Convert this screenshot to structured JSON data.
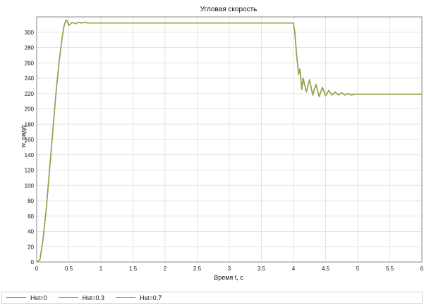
{
  "chart_data": {
    "type": "line",
    "title": "Угловая скорость",
    "xlabel": "Время t, с",
    "ylabel": "w, рад/с",
    "xlim": [
      0,
      6
    ],
    "ylim": [
      0,
      320
    ],
    "xticks": [
      "0",
      "0.5",
      "1",
      "1.5",
      "2",
      "2.5",
      "3",
      "3.5",
      "4",
      "4.5",
      "5",
      "5.5",
      "6"
    ],
    "yticks": [
      "0",
      "20",
      "40",
      "60",
      "80",
      "100",
      "120",
      "140",
      "160",
      "180",
      "200",
      "220",
      "240",
      "260",
      "280",
      "300"
    ],
    "grid": true,
    "legend_position": "bottom",
    "series": [
      {
        "name": "Hst=0",
        "color": "#ff4d4d",
        "x": [
          0,
          0.05,
          0.1,
          0.15,
          0.2,
          0.25,
          0.3,
          0.35,
          0.4,
          0.43,
          0.46,
          0.48,
          0.5,
          0.52,
          0.55,
          0.6,
          0.65,
          0.7,
          0.75,
          0.8,
          1.0,
          2.0,
          3.0,
          3.9,
          4.0,
          4.02,
          4.05,
          4.08,
          4.1,
          4.13,
          4.15,
          4.2,
          4.25,
          4.3,
          4.35,
          4.4,
          4.45,
          4.5,
          4.55,
          4.6,
          4.65,
          4.7,
          4.75,
          4.8,
          4.85,
          4.9,
          4.95,
          5.0,
          5.1,
          5.2,
          5.4,
          5.6,
          6.0
        ],
        "y": [
          0,
          3,
          30,
          70,
          120,
          170,
          220,
          262,
          295,
          310,
          316,
          314,
          309,
          310,
          313,
          311,
          313,
          312,
          313,
          312,
          312,
          312,
          312,
          312,
          312,
          300,
          270,
          245,
          252,
          225,
          240,
          222,
          238,
          218,
          232,
          216,
          228,
          217,
          224,
          218,
          222,
          218,
          221,
          218,
          220,
          218,
          219,
          219,
          219,
          219,
          219,
          219,
          219
        ]
      },
      {
        "name": "Hst=0.3",
        "color": "#33aaff",
        "x": [
          0,
          0.05,
          0.1,
          0.15,
          0.2,
          0.25,
          0.3,
          0.35,
          0.4,
          0.43,
          0.46,
          0.48,
          0.5,
          0.52,
          0.55,
          0.6,
          0.65,
          0.7,
          0.75,
          0.8,
          1.0,
          2.0,
          3.0,
          3.9,
          4.0,
          4.02,
          4.05,
          4.08,
          4.1,
          4.13,
          4.15,
          4.2,
          4.25,
          4.3,
          4.35,
          4.4,
          4.45,
          4.5,
          4.55,
          4.6,
          4.65,
          4.7,
          4.75,
          4.8,
          4.85,
          4.9,
          4.95,
          5.0,
          5.1,
          5.2,
          5.4,
          5.6,
          6.0
        ],
        "y": [
          0,
          3,
          30,
          70,
          120,
          170,
          220,
          262,
          295,
          310,
          316,
          314,
          309,
          310,
          313,
          311,
          313,
          312,
          313,
          312,
          312,
          312,
          312,
          312,
          312,
          300,
          270,
          245,
          252,
          225,
          240,
          222,
          238,
          218,
          232,
          216,
          228,
          217,
          224,
          218,
          222,
          218,
          221,
          218,
          220,
          218,
          219,
          219,
          219,
          219,
          219,
          219,
          219
        ]
      },
      {
        "name": "Hst=0.7",
        "color": "#99a832",
        "x": [
          0,
          0.05,
          0.1,
          0.15,
          0.2,
          0.25,
          0.3,
          0.35,
          0.4,
          0.43,
          0.46,
          0.48,
          0.5,
          0.52,
          0.55,
          0.6,
          0.65,
          0.7,
          0.75,
          0.8,
          1.0,
          2.0,
          3.0,
          3.9,
          4.0,
          4.02,
          4.05,
          4.08,
          4.1,
          4.13,
          4.15,
          4.2,
          4.25,
          4.3,
          4.35,
          4.4,
          4.45,
          4.5,
          4.55,
          4.6,
          4.65,
          4.7,
          4.75,
          4.8,
          4.85,
          4.9,
          4.95,
          5.0,
          5.1,
          5.2,
          5.4,
          5.6,
          6.0
        ],
        "y": [
          0,
          3,
          30,
          70,
          120,
          170,
          220,
          262,
          295,
          310,
          316,
          314,
          309,
          310,
          313,
          311,
          313,
          312,
          313,
          312,
          312,
          312,
          312,
          312,
          312,
          300,
          270,
          245,
          252,
          225,
          240,
          222,
          238,
          218,
          232,
          216,
          228,
          217,
          224,
          218,
          222,
          218,
          221,
          218,
          220,
          218,
          219,
          219,
          219,
          219,
          219,
          219,
          219
        ]
      }
    ]
  }
}
